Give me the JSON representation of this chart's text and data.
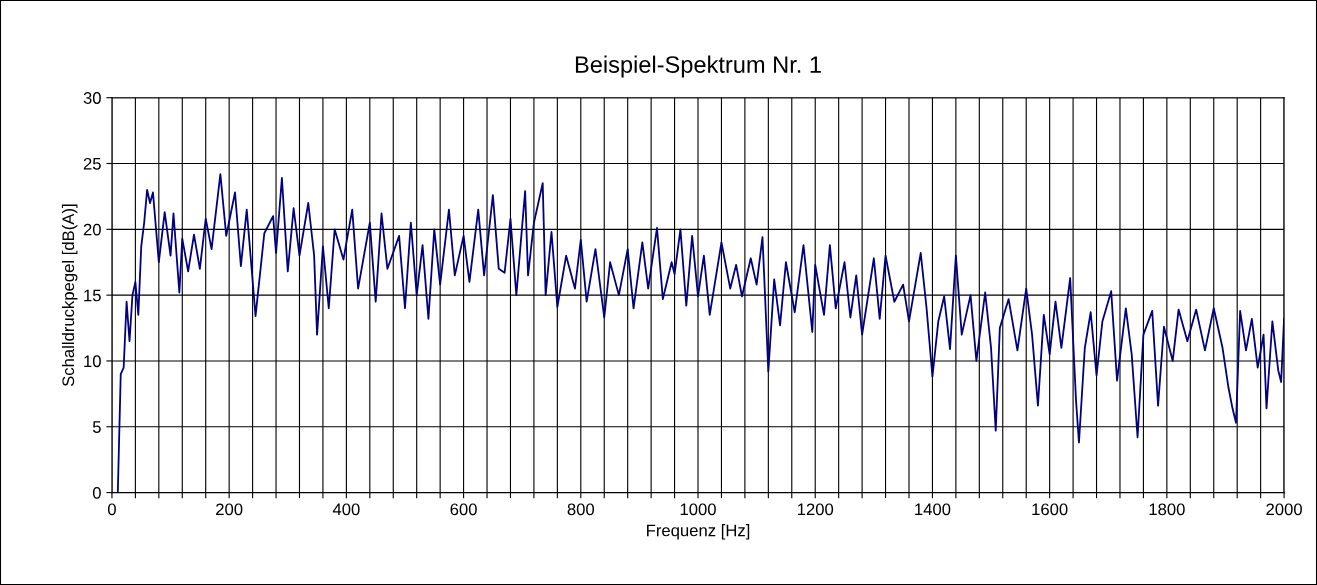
{
  "chart_data": {
    "type": "line",
    "title": "Beispiel-Spektrum Nr. 1",
    "xlabel": "Frequenz [Hz]",
    "ylabel": "Schalldruckpegel [dB(A)]",
    "xlim": [
      0,
      2000
    ],
    "ylim": [
      0,
      30
    ],
    "xticks": [
      0,
      {
        "value": 40,
        "label": null
      },
      {
        "value": 80,
        "label": null
      },
      {
        "value": 120,
        "label": null
      },
      {
        "value": 160,
        "label": null
      },
      200,
      {
        "value": 240,
        "label": null
      },
      {
        "value": 280,
        "label": null
      },
      {
        "value": 320,
        "label": null
      },
      {
        "value": 360,
        "label": null
      },
      400,
      {
        "value": 440,
        "label": null
      },
      {
        "value": 480,
        "label": null
      },
      {
        "value": 520,
        "label": null
      },
      {
        "value": 560,
        "label": null
      },
      600,
      {
        "value": 640,
        "label": null
      },
      {
        "value": 680,
        "label": null
      },
      {
        "value": 720,
        "label": null
      },
      {
        "value": 760,
        "label": null
      },
      800,
      {
        "value": 840,
        "label": null
      },
      {
        "value": 880,
        "label": null
      },
      {
        "value": 920,
        "label": null
      },
      {
        "value": 960,
        "label": null
      },
      1000,
      {
        "value": 1040,
        "label": null
      },
      {
        "value": 1080,
        "label": null
      },
      {
        "value": 1120,
        "label": null
      },
      {
        "value": 1160,
        "label": null
      },
      1200,
      {
        "value": 1240,
        "label": null
      },
      {
        "value": 1280,
        "label": null
      },
      {
        "value": 1320,
        "label": null
      },
      {
        "value": 1360,
        "label": null
      },
      1400,
      {
        "value": 1440,
        "label": null
      },
      {
        "value": 1480,
        "label": null
      },
      {
        "value": 1520,
        "label": null
      },
      {
        "value": 1560,
        "label": null
      },
      1600,
      {
        "value": 1640,
        "label": null
      },
      {
        "value": 1680,
        "label": null
      },
      {
        "value": 1720,
        "label": null
      },
      {
        "value": 1760,
        "label": null
      },
      1800,
      {
        "value": 1840,
        "label": null
      },
      {
        "value": 1880,
        "label": null
      },
      {
        "value": 1920,
        "label": null
      },
      {
        "value": 1960,
        "label": null
      },
      2000
    ],
    "yticks": [
      0,
      5,
      10,
      15,
      20,
      25,
      30
    ],
    "grid": true,
    "marker": "none",
    "line_style": "solid",
    "series": [
      {
        "color": "#000080",
        "x": [
          10,
          15,
          20,
          25,
          30,
          35,
          40,
          45,
          50,
          55,
          60,
          65,
          70,
          80,
          90,
          100,
          105,
          115,
          120,
          130,
          140,
          150,
          160,
          170,
          185,
          195,
          210,
          220,
          230,
          245,
          260,
          275,
          280,
          290,
          300,
          310,
          320,
          335,
          345,
          350,
          360,
          370,
          380,
          395,
          410,
          420,
          440,
          450,
          460,
          470,
          490,
          500,
          510,
          520,
          530,
          540,
          550,
          560,
          575,
          585,
          600,
          610,
          625,
          635,
          650,
          660,
          670,
          680,
          690,
          705,
          710,
          720,
          735,
          740,
          750,
          760,
          775,
          790,
          800,
          810,
          825,
          840,
          850,
          865,
          880,
          890,
          905,
          915,
          930,
          940,
          955,
          960,
          970,
          980,
          990,
          1000,
          1010,
          1020,
          1040,
          1055,
          1065,
          1075,
          1090,
          1100,
          1110,
          1120,
          1130,
          1140,
          1150,
          1165,
          1180,
          1195,
          1200,
          1215,
          1225,
          1235,
          1250,
          1260,
          1270,
          1280,
          1300,
          1310,
          1320,
          1335,
          1350,
          1360,
          1380,
          1390,
          1400,
          1410,
          1420,
          1430,
          1440,
          1450,
          1465,
          1475,
          1490,
          1500,
          1508,
          1515,
          1530,
          1545,
          1560,
          1570,
          1580,
          1590,
          1600,
          1610,
          1620,
          1635,
          1645,
          1650,
          1660,
          1670,
          1680,
          1690,
          1705,
          1715,
          1730,
          1740,
          1750,
          1760,
          1775,
          1785,
          1795,
          1810,
          1820,
          1835,
          1850,
          1865,
          1880,
          1895,
          1905,
          1912,
          1918,
          1925,
          1935,
          1945,
          1955,
          1965,
          1970,
          1980,
          1990,
          1995,
          2000
        ],
        "values": [
          0,
          9,
          9.5,
          14.5,
          11.5,
          15,
          16,
          13.5,
          18.7,
          20.5,
          23,
          22,
          22.8,
          17.5,
          21.3,
          18,
          21.2,
          15.2,
          19.3,
          16.8,
          19.6,
          17,
          20.8,
          18.5,
          24.2,
          19.5,
          22.8,
          17.2,
          21.5,
          13.4,
          19.7,
          21,
          18.2,
          23.9,
          16.8,
          21.6,
          18,
          22,
          18,
          12,
          18.7,
          14,
          20,
          17.7,
          21.5,
          15.5,
          20.5,
          14.5,
          21.2,
          17,
          19.5,
          14,
          20.5,
          15,
          18.8,
          13.2,
          20,
          15.8,
          21.5,
          16.5,
          19.5,
          16,
          21.5,
          16.5,
          22.6,
          17,
          16.7,
          20.8,
          15,
          22.9,
          16.5,
          20.5,
          23.5,
          15,
          19.8,
          14.1,
          18,
          15.5,
          19.2,
          14.5,
          18.5,
          13.3,
          17.5,
          15,
          18.5,
          14,
          19,
          15.5,
          20.1,
          14.7,
          17.5,
          16.6,
          20,
          14.2,
          19.5,
          14.9,
          18,
          13.5,
          19,
          15.5,
          17.3,
          14.9,
          17.8,
          15.8,
          19.4,
          9.2,
          16.2,
          12.7,
          17.5,
          13.7,
          18.8,
          12.2,
          17.3,
          13.5,
          18.8,
          14,
          17.5,
          13.3,
          16.5,
          12,
          17.8,
          13.2,
          18,
          14.5,
          15.8,
          13,
          18.2,
          14,
          8.8,
          13,
          14.9,
          10.9,
          18,
          12,
          15,
          10,
          15.2,
          11,
          4.7,
          12.5,
          14.7,
          10.8,
          15.5,
          12,
          6.6,
          13.5,
          10.5,
          14.5,
          11,
          16.3,
          7,
          3.8,
          11,
          13.7,
          8.9,
          13,
          15.3,
          8.5,
          14,
          10.5,
          4.2,
          12,
          13.8,
          6.6,
          12.6,
          10,
          13.9,
          11.5,
          13.9,
          10.8,
          14,
          11,
          8,
          6.4,
          5.3,
          13.8,
          10.8,
          13.2,
          9.5,
          12,
          6.4,
          13,
          9.3,
          8.4,
          13.2
        ]
      }
    ]
  }
}
